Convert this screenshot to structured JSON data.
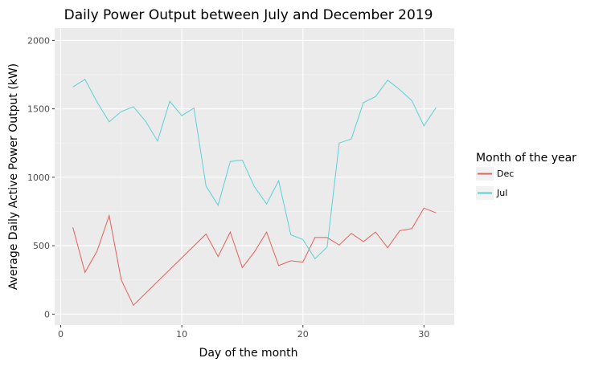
{
  "chart_data": {
    "type": "line",
    "title": "Daily Power Output between July and December 2019",
    "xlabel": "Day of the month",
    "ylabel": "Average Daily Active Power Output (kW)",
    "xlim": [
      -0.5,
      32.5
    ],
    "ylim": [
      -80,
      2090
    ],
    "x_ticks": [
      0,
      10,
      20,
      30
    ],
    "y_ticks": [
      0,
      500,
      1000,
      1500,
      2000
    ],
    "grid": true,
    "legend": {
      "title": "Month of the year",
      "placement": "right"
    },
    "series": [
      {
        "name": "Dec",
        "color": "#E0625A",
        "x": [
          1,
          2,
          3,
          4,
          5,
          6,
          12,
          13,
          14,
          15,
          16,
          17,
          18,
          19,
          20,
          21,
          22,
          23,
          24,
          25,
          26,
          27,
          28,
          29,
          30,
          31
        ],
        "y": [
          635,
          305,
          460,
          720,
          250,
          65,
          585,
          420,
          600,
          340,
          455,
          600,
          355,
          390,
          380,
          560,
          560,
          505,
          590,
          530,
          600,
          485,
          610,
          625,
          775,
          740
        ]
      },
      {
        "name": "Jul",
        "color": "#5BCFD6",
        "x": [
          1,
          2,
          3,
          4,
          5,
          6,
          7,
          8,
          9,
          10,
          11,
          12,
          13,
          14,
          15,
          16,
          17,
          18,
          19,
          20,
          21,
          22,
          23,
          24,
          25,
          26,
          27,
          28,
          29,
          30,
          31
        ],
        "y": [
          1660,
          1715,
          1550,
          1405,
          1480,
          1515,
          1410,
          1265,
          1555,
          1450,
          1505,
          935,
          795,
          1115,
          1125,
          930,
          805,
          975,
          580,
          545,
          405,
          490,
          1250,
          1280,
          1545,
          1590,
          1710,
          1640,
          1560,
          1375,
          1510
        ]
      }
    ]
  }
}
